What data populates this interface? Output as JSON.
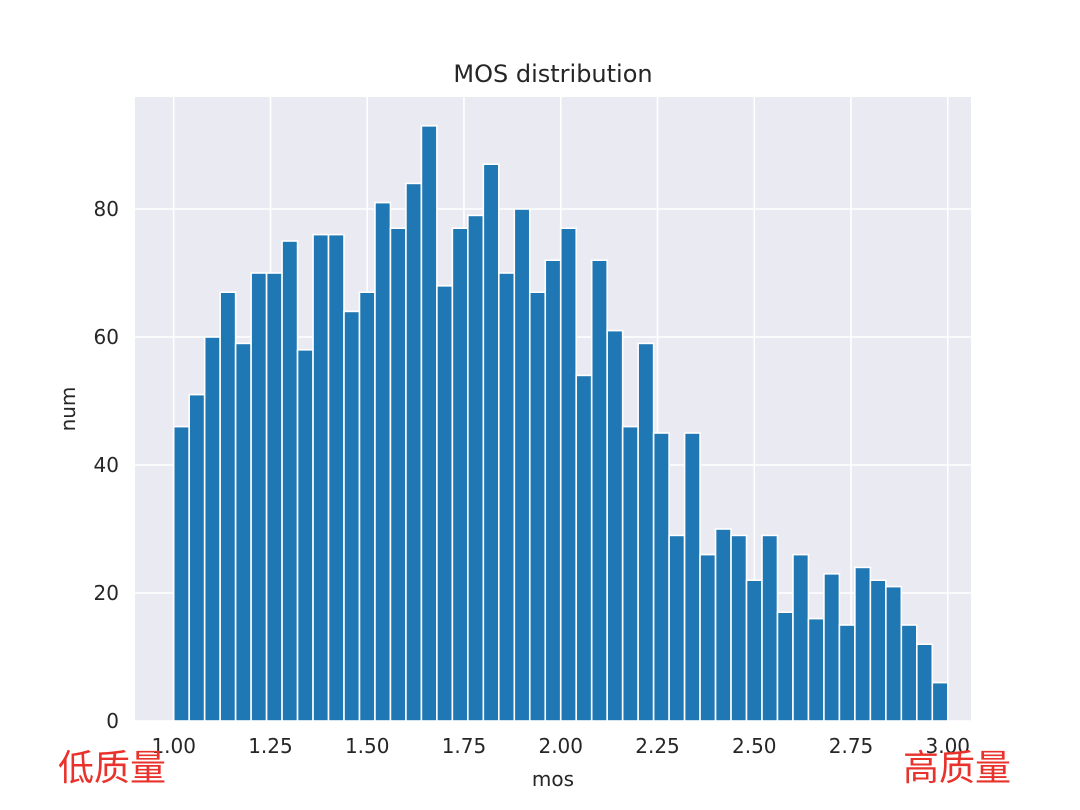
{
  "chart_data": {
    "type": "bar",
    "title": "MOS distribution",
    "xlabel": "mos",
    "ylabel": "num",
    "xlim": [
      0.9,
      3.06
    ],
    "ylim": [
      0,
      97.5
    ],
    "bin_start": 1.0,
    "bin_width": 0.04,
    "values": [
      46,
      51,
      60,
      67,
      59,
      70,
      70,
      75,
      58,
      76,
      76,
      64,
      67,
      81,
      77,
      84,
      93,
      68,
      77,
      79,
      87,
      70,
      80,
      67,
      72,
      77,
      54,
      72,
      61,
      46,
      59,
      45,
      29,
      45,
      26,
      30,
      29,
      22,
      29,
      17,
      26,
      16,
      23,
      15,
      24,
      22,
      21,
      15,
      12,
      6
    ],
    "x_ticks": [
      "1.00",
      "1.25",
      "1.50",
      "1.75",
      "2.00",
      "2.25",
      "2.50",
      "2.75",
      "3.00"
    ],
    "x_tick_values": [
      1.0,
      1.25,
      1.5,
      1.75,
      2.0,
      2.25,
      2.5,
      2.75,
      3.0
    ],
    "y_ticks": [
      "0",
      "20",
      "40",
      "60",
      "80"
    ],
    "y_tick_values": [
      0,
      20,
      40,
      60,
      80
    ],
    "grid": true,
    "colors": {
      "bar": "#1f77b4",
      "plot_bg": "#eaeaf2",
      "grid": "#ffffff",
      "annotation": "#e8322b"
    }
  },
  "annotations": {
    "left": "低质量",
    "right": "高质量"
  }
}
